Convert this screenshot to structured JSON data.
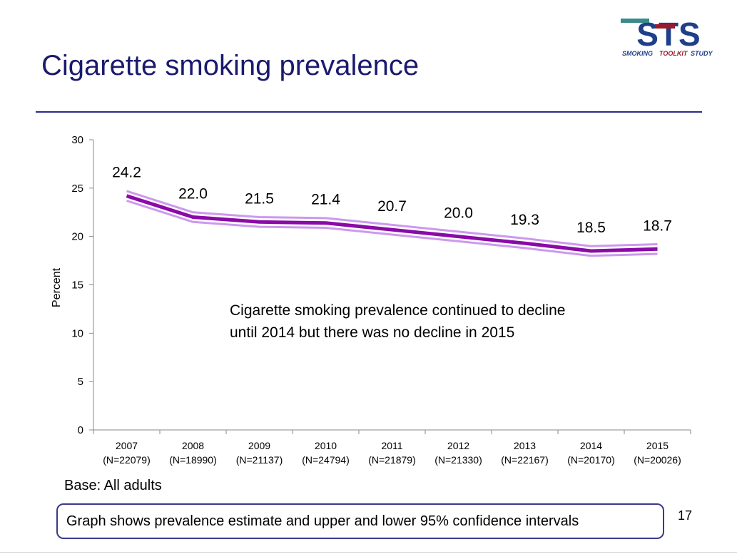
{
  "slide": {
    "title": "Cigarette smoking prevalence",
    "logo": {
      "main": "STS",
      "words": [
        "SMOKING",
        "TOOLKIT",
        "STUDY"
      ]
    },
    "annotation": "Cigarette smoking prevalence continued to decline until 2014 but there was no decline in 2015",
    "base_note": "Base: All adults",
    "ci_note": "Graph shows prevalence estimate and upper and lower 95% confidence intervals",
    "page_number": "17"
  },
  "chart_data": {
    "type": "line",
    "title": "",
    "xlabel": "",
    "ylabel": "Percent",
    "ylim": [
      0,
      30
    ],
    "yticks": [
      0,
      5,
      10,
      15,
      20,
      25,
      30
    ],
    "grid": false,
    "categories": [
      "2007",
      "2008",
      "2009",
      "2010",
      "2011",
      "2012",
      "2013",
      "2014",
      "2015"
    ],
    "category_sublabels": [
      "(N=22079)",
      "(N=18990)",
      "(N=21137)",
      "(N=24794)",
      "(N=21879)",
      "(N=21330)",
      "(N=22167)",
      "(N=20170)",
      "(N=20026)"
    ],
    "series": [
      {
        "role": "upper-ci",
        "color": "#cc99ee",
        "values": [
          24.7,
          22.5,
          22.0,
          21.9,
          21.2,
          20.5,
          19.8,
          19.0,
          19.2
        ]
      },
      {
        "role": "estimate",
        "color": "#8a0aa8",
        "values": [
          24.2,
          22.0,
          21.5,
          21.4,
          20.7,
          20.0,
          19.3,
          18.5,
          18.7
        ]
      },
      {
        "role": "lower-ci",
        "color": "#cc99ee",
        "values": [
          23.7,
          21.5,
          21.0,
          20.9,
          20.2,
          19.5,
          18.8,
          18.0,
          18.2
        ]
      }
    ],
    "data_labels": [
      "24.2",
      "22.0",
      "21.5",
      "21.4",
      "20.7",
      "20.0",
      "19.3",
      "18.5",
      "18.7"
    ]
  }
}
